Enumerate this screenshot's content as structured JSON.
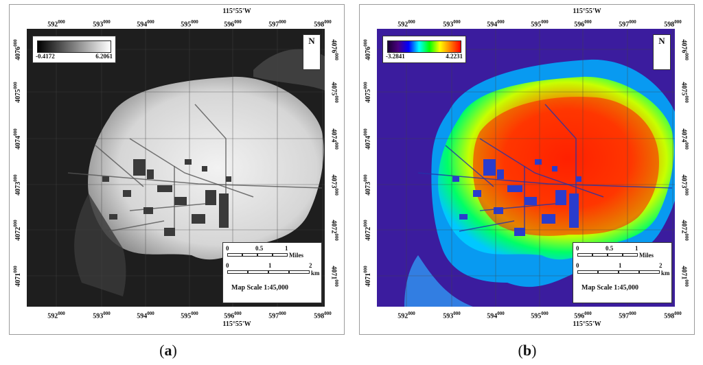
{
  "panels": [
    {
      "id": "a",
      "caption_letter": "a",
      "legend": {
        "min": "-0.4172",
        "max": "6.2061",
        "colors": [
          "#000000",
          "#ffffff"
        ]
      },
      "scale": {
        "miles_ticks": [
          "0",
          "0.5",
          "1"
        ],
        "miles_unit": "Miles",
        "km_ticks": [
          "0",
          "1",
          "2"
        ],
        "km_unit": "km",
        "map_scale": "Map Scale 1:45,000"
      }
    },
    {
      "id": "b",
      "caption_letter": "b",
      "legend": {
        "min": "-3.2841",
        "max": "4.2231",
        "colors": [
          "#1a0033",
          "#4b0082",
          "#0000ff",
          "#00ffff",
          "#00ff00",
          "#ffff00",
          "#ff7f00",
          "#ff0000"
        ]
      },
      "scale": {
        "miles_ticks": [
          "0",
          "0.5",
          "1"
        ],
        "miles_unit": "Miles",
        "km_ticks": [
          "0",
          "1",
          "2"
        ],
        "km_unit": "km",
        "map_scale": "Map Scale 1:45,000"
      }
    }
  ],
  "axes": {
    "x_ticks": [
      "592",
      "593",
      "594",
      "595",
      "596",
      "597",
      "598"
    ],
    "x_tick_suffix": "000",
    "y_ticks": [
      "4076",
      "4075",
      "4074",
      "4073",
      "4072",
      "4071"
    ],
    "y_tick_suffix": "000",
    "longitude_label": "115°55'W",
    "north_letter": "N"
  }
}
